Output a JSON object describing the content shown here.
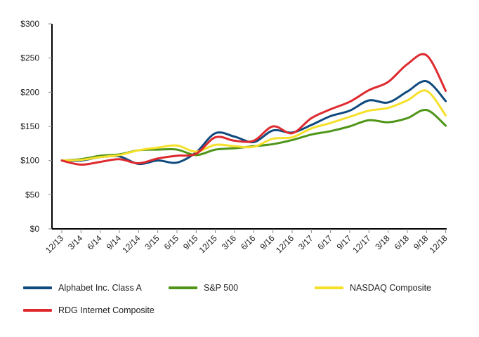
{
  "chart_data": {
    "type": "line",
    "title": "",
    "xlabel": "",
    "ylabel": "",
    "ylim": [
      0,
      300
    ],
    "yticks": [
      "$0",
      "$50",
      "$100",
      "$150",
      "$200",
      "$250",
      "$300"
    ],
    "ytick_values": [
      0,
      50,
      100,
      150,
      200,
      250,
      300
    ],
    "grid": false,
    "legend_position": "bottom",
    "categories": [
      "12/13",
      "3/14",
      "6/14",
      "9/14",
      "12/14",
      "3/15",
      "6/15",
      "9/15",
      "12/15",
      "3/16",
      "6/16",
      "9/16",
      "12/16",
      "3/17",
      "6/17",
      "9/17",
      "12/17",
      "3/18",
      "6/18",
      "9/18",
      "12/18"
    ],
    "series": [
      {
        "name": "Alphabet Inc. Class A",
        "color": "#0f4a7e",
        "values": [
          100,
          100,
          105,
          106,
          95,
          100,
          97,
          112,
          140,
          135,
          127,
          144,
          141,
          152,
          165,
          173,
          188,
          185,
          201,
          216,
          187
        ]
      },
      {
        "name": "S&P 500",
        "color": "#4f9518",
        "values": [
          100,
          102,
          107,
          109,
          115,
          116,
          116,
          108,
          116,
          118,
          121,
          124,
          130,
          138,
          143,
          150,
          159,
          156,
          162,
          174,
          151
        ]
      },
      {
        "name": "NASDAQ Composite",
        "color": "#f6e02a",
        "values": [
          100,
          101,
          105,
          108,
          115,
          119,
          122,
          113,
          123,
          121,
          120,
          132,
          134,
          147,
          155,
          164,
          173,
          177,
          188,
          202,
          166
        ]
      },
      {
        "name": "RDG Internet Composite",
        "color": "#de2a2e",
        "values": [
          100,
          94,
          98,
          102,
          96,
          103,
          107,
          110,
          134,
          129,
          129,
          150,
          140,
          162,
          175,
          186,
          203,
          215,
          241,
          254,
          202
        ]
      }
    ]
  }
}
